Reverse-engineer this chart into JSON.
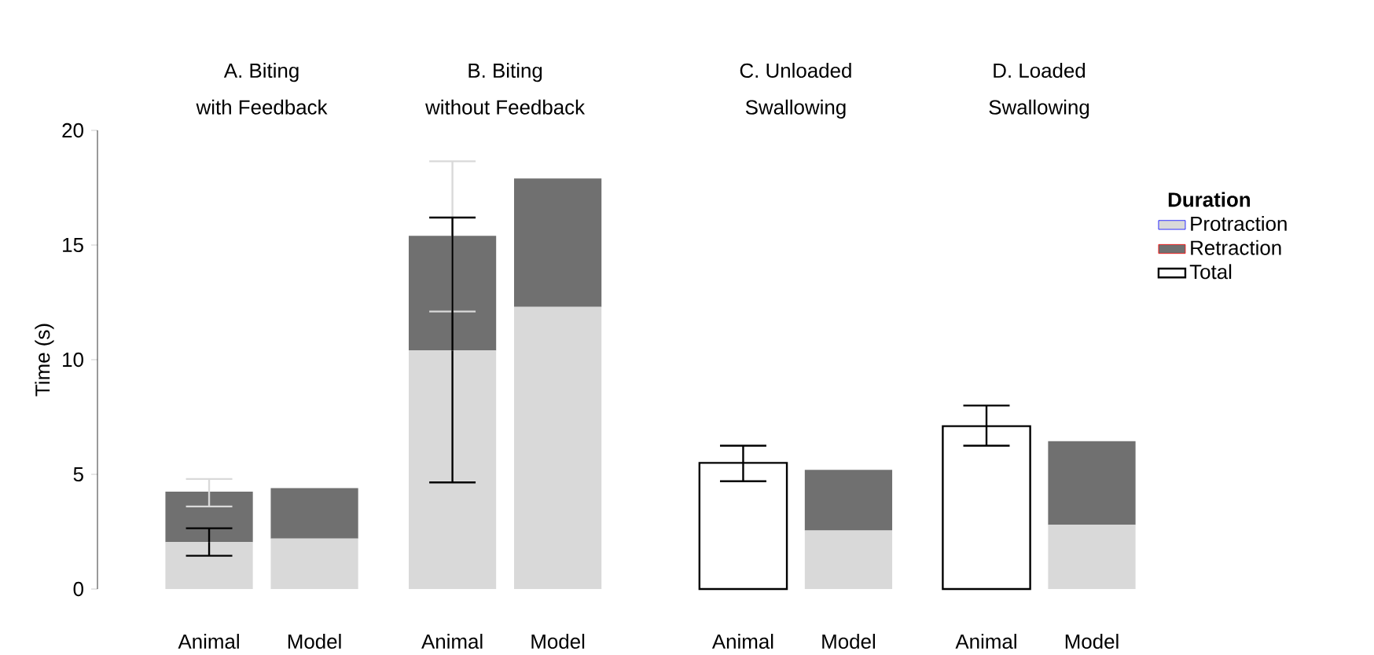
{
  "chart_data": {
    "type": "bar",
    "stacked": true,
    "ylabel": "Time (s)",
    "legend_title": "Duration",
    "legend": "right",
    "categories": [
      "Animal",
      "Model",
      "Animal",
      "Model",
      "Animal",
      "Model",
      "Animal",
      "Model"
    ],
    "annotations": [
      "A. Biting",
      "with Feedback",
      "B. Biting",
      "without Feedback",
      "C. Unloaded",
      "Swallowing",
      "D. Loaded",
      "Swallowing"
    ],
    "ylim": [
      0,
      20
    ],
    "yticks": [
      0,
      5,
      10,
      15,
      20
    ],
    "series": [
      {
        "name": "Protraction",
        "color": "#d9d9d9",
        "values": [
          2.05,
          2.2,
          10.4,
          12.3,
          null,
          2.55,
          null,
          2.8
        ],
        "errors": [
          [
            1.45,
            2.65
          ],
          null,
          [
            4.65,
            16.2
          ],
          null,
          null,
          null,
          null,
          null
        ]
      },
      {
        "name": "Retraction",
        "color": "#707070",
        "values": [
          2.2,
          2.2,
          5.0,
          5.6,
          null,
          2.65,
          null,
          3.65
        ],
        "errors": [
          [
            3.6,
            4.8
          ],
          null,
          [
            12.1,
            18.65
          ],
          null,
          null,
          null,
          null,
          null
        ]
      },
      {
        "name": "Total",
        "color": "#ffffff",
        "values": [
          null,
          null,
          null,
          null,
          5.5,
          null,
          7.1,
          null
        ],
        "errors": [
          null,
          null,
          null,
          null,
          [
            4.7,
            6.25
          ],
          null,
          [
            6.25,
            8.0
          ],
          null
        ]
      }
    ]
  }
}
